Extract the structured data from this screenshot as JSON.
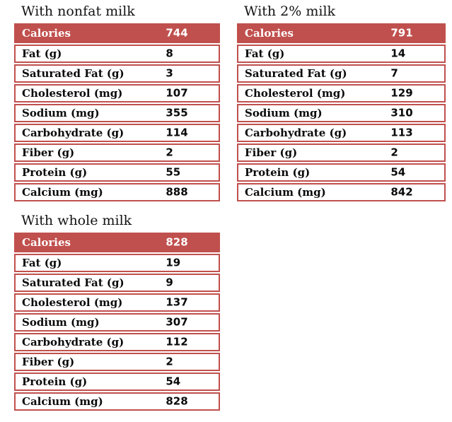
{
  "colors": {
    "accent_red": "#c0504d",
    "header_text": "#ffffff",
    "body_text": "#0a0a0a",
    "background": "#ffffff"
  },
  "chart_data": [
    {
      "type": "table",
      "title": "With nonfat milk",
      "header": {
        "label": "Calories",
        "value": "744"
      },
      "rows": [
        {
          "label": "Fat (g)",
          "value": "8"
        },
        {
          "label": "Saturated Fat (g)",
          "value": "3"
        },
        {
          "label": "Cholesterol (mg)",
          "value": "107"
        },
        {
          "label": "Sodium (mg)",
          "value": "355"
        },
        {
          "label": "Carbohydrate (g)",
          "value": "114"
        },
        {
          "label": "Fiber (g)",
          "value": "2"
        },
        {
          "label": "Protein (g)",
          "value": "55"
        },
        {
          "label": "Calcium (mg)",
          "value": "888"
        }
      ]
    },
    {
      "type": "table",
      "title": "With 2% milk",
      "header": {
        "label": "Calories",
        "value": "791"
      },
      "rows": [
        {
          "label": "Fat (g)",
          "value": "14"
        },
        {
          "label": "Saturated Fat (g)",
          "value": "7"
        },
        {
          "label": "Cholesterol (mg)",
          "value": "129"
        },
        {
          "label": "Sodium (mg)",
          "value": "310"
        },
        {
          "label": "Carbohydrate (g)",
          "value": "113"
        },
        {
          "label": "Fiber (g)",
          "value": "2"
        },
        {
          "label": "Protein (g)",
          "value": "54"
        },
        {
          "label": "Calcium (mg)",
          "value": "842"
        }
      ]
    },
    {
      "type": "table",
      "title": "With whole milk",
      "header": {
        "label": "Calories",
        "value": "828"
      },
      "rows": [
        {
          "label": "Fat (g)",
          "value": "19"
        },
        {
          "label": "Saturated Fat (g)",
          "value": "9"
        },
        {
          "label": "Cholesterol (mg)",
          "value": "137"
        },
        {
          "label": "Sodium (mg)",
          "value": "307"
        },
        {
          "label": "Carbohydrate (g)",
          "value": "112"
        },
        {
          "label": "Fiber (g)",
          "value": "2"
        },
        {
          "label": "Protein (g)",
          "value": "54"
        },
        {
          "label": "Calcium (mg)",
          "value": "828"
        }
      ]
    }
  ]
}
